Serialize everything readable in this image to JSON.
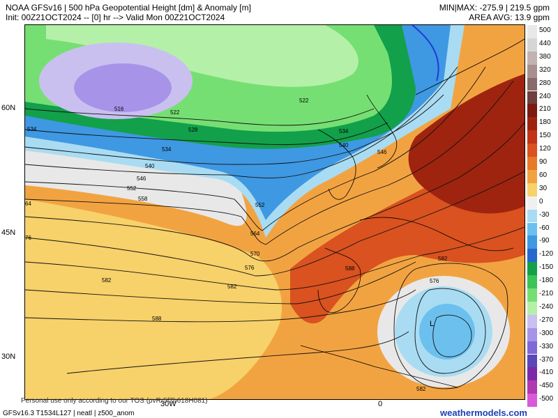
{
  "header": {
    "title_line1": "NOAA GFSv16 | 500 hPa Geopotential Height [dm] & Anomaly [m]",
    "title_line2": "Init: 00Z21OCT2024 -- [0] hr --> Valid Mon 00Z21OCT2024",
    "minmax": "MIN|MAX: -275.9 | 219.5 gpm",
    "area_avg": "AREA AVG: 13.9 gpm"
  },
  "axes": {
    "lat_labels": [
      "60N",
      "45N",
      "30N"
    ],
    "lon_labels": [
      "30W",
      "0"
    ]
  },
  "contour_labels": [
    "516",
    "522",
    "528",
    "534",
    "540",
    "546",
    "552",
    "558",
    "564",
    "570",
    "576",
    "582",
    "588"
  ],
  "map_contour_text": {
    "c516": "516",
    "c522a": "522",
    "c522b": "522",
    "c528": "528",
    "c534a": "534",
    "c534b": "534",
    "c540": "540",
    "c546a": "546",
    "c546b": "546",
    "c552a": "552",
    "c552b": "552",
    "c558": "558",
    "c564a": "64",
    "c564b": "564",
    "c570": "570",
    "c576a": "576",
    "c576b": "576",
    "c582a": "582",
    "c582b": "582",
    "c582c": "582",
    "c582d": "582",
    "c588a": "588",
    "c588b": "588",
    "c576l": "76",
    "c534c": "534",
    "c540b": "540"
  },
  "colorbar": {
    "labels": [
      "500",
      "440",
      "380",
      "320",
      "280",
      "240",
      "210",
      "180",
      "150",
      "120",
      "90",
      "60",
      "30",
      "0",
      "-30",
      "-60",
      "-90",
      "-120",
      "-150",
      "-180",
      "-210",
      "-240",
      "-270",
      "-300",
      "-330",
      "-370",
      "-410",
      "-450",
      "-500"
    ],
    "colors": [
      "#e8e8e8",
      "#d6d6d6",
      "#c2b2b2",
      "#a89090",
      "#8a6b6b",
      "#6e4040",
      "#7a1a10",
      "#9e2410",
      "#c23318",
      "#d9521f",
      "#e8782b",
      "#f2a341",
      "#f7d16a",
      "#f0f0f0",
      "#a9dcf2",
      "#6cc0ee",
      "#3f98e2",
      "#2668cc",
      "#12a04a",
      "#3cc456",
      "#76df73",
      "#b5f0a8",
      "#c9c0f0",
      "#a794e8",
      "#7d6ad8",
      "#5a48b8",
      "#7a2aa8",
      "#b038b0",
      "#d85ad8"
    ]
  },
  "footer": {
    "personal_use": "Personal use only according to our TOS (pvRr5f7h618H081)",
    "model_info": "GFSv16.3 T1534L127 | neatl | z500_anom",
    "brand": "weathermodels.com"
  }
}
